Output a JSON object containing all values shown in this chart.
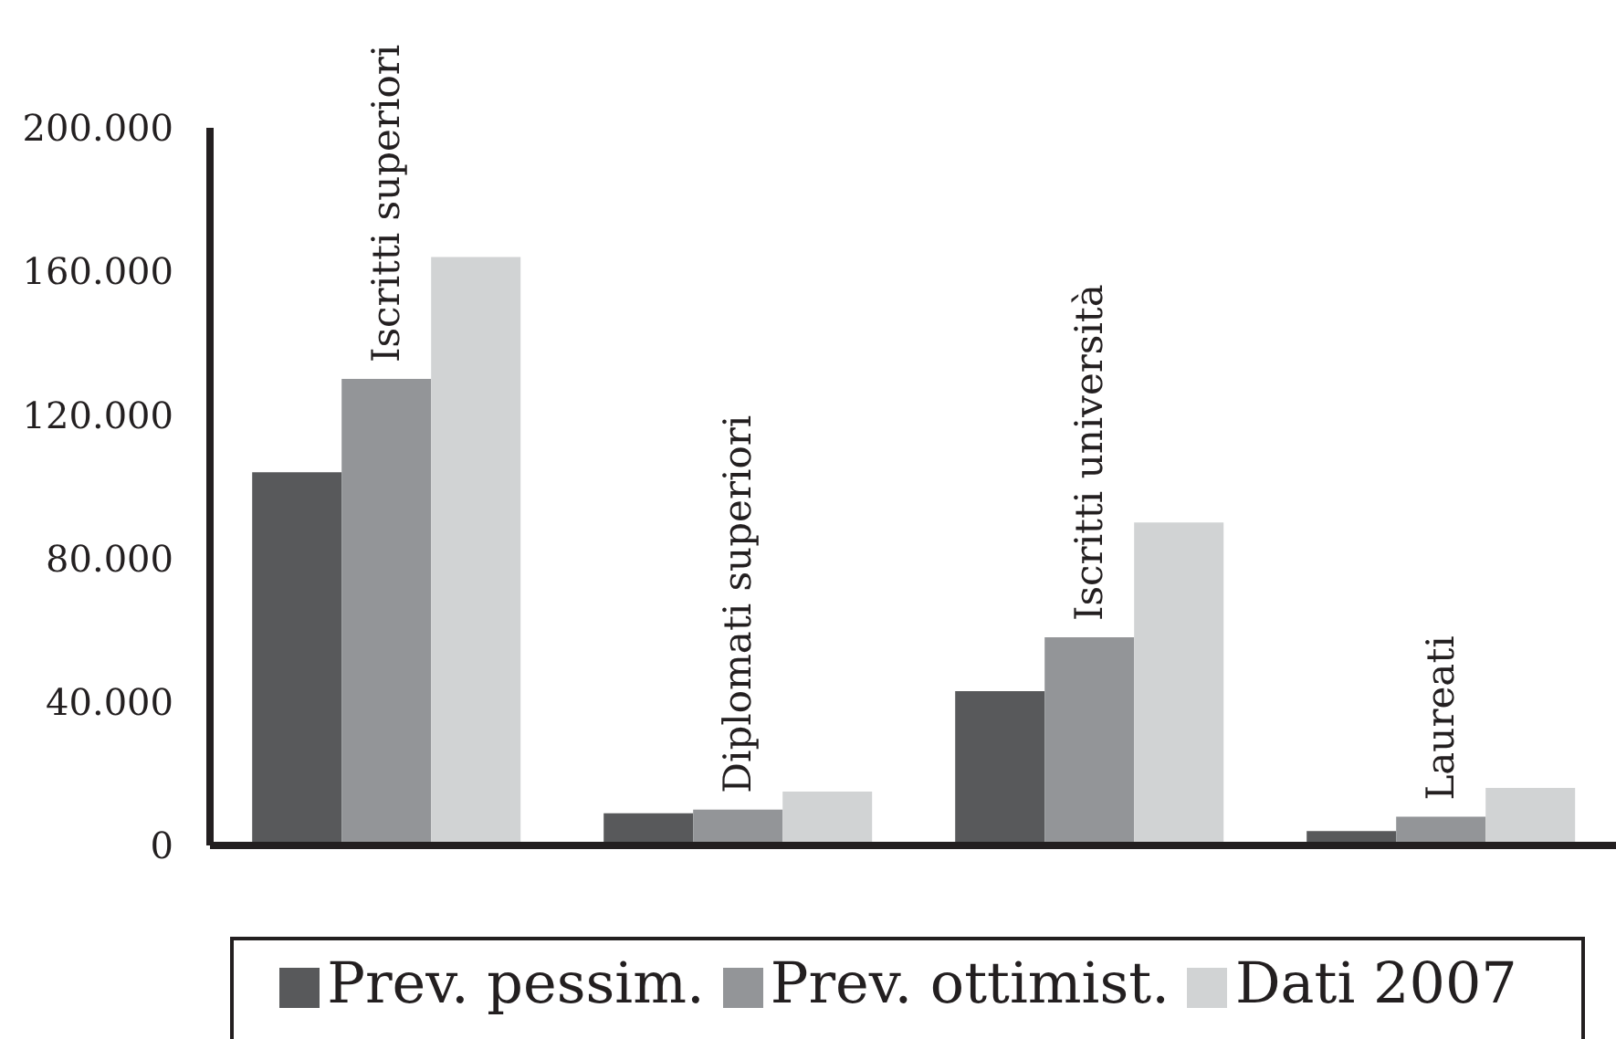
{
  "chart_data": {
    "type": "bar",
    "categories": [
      "Iscritti superiori",
      "Diplomati superiori",
      "Iscritti università",
      "Laureati"
    ],
    "series": [
      {
        "name": "Prev. pessim.",
        "color": "#58595b",
        "values": [
          104000,
          9000,
          43000,
          4000
        ]
      },
      {
        "name": "Prev. ottimist.",
        "color": "#939598",
        "values": [
          130000,
          10000,
          58000,
          8000
        ]
      },
      {
        "name": "Dati 2007",
        "color": "#d1d3d4",
        "values": [
          164000,
          15000,
          90000,
          16000
        ]
      }
    ],
    "ylim": [
      0,
      200000
    ],
    "yticks": [
      0,
      {
        "value": 40000,
        "label": "40.000"
      },
      {
        "value": 80000,
        "label": "80.000"
      },
      {
        "value": 120000,
        "label": "120.000"
      },
      {
        "value": 160000,
        "label": "160.000"
      },
      {
        "value": 200000,
        "label": "200.000"
      }
    ],
    "legend": "bottom"
  }
}
